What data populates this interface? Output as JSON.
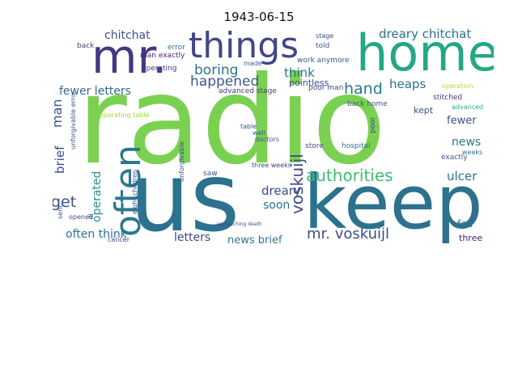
{
  "title": "1943-06-15",
  "words": {
    "radio": "radio",
    "keep": "keep",
    "us": "us",
    "mr": "mr.",
    "home": "home",
    "things": "things",
    "often": "often",
    "authorities": "authorities",
    "voskuijl": "voskuijl",
    "mr_voskuijl": "mr. voskuijl",
    "dreary_chitchat": "dreary chitchat",
    "chitchat": "chitchat",
    "hand": "hand",
    "boring": "boring",
    "happened": "happened",
    "fewer_letters": "fewer letters",
    "think": "think",
    "heaps": "heaps",
    "man": "man",
    "get": "get",
    "operated": "operated",
    "brief": "brief",
    "dreary": "dreary",
    "soon": "soon",
    "often_think": "often think",
    "letters": "letters",
    "news_brief": "news brief",
    "news": "news",
    "fewer": "fewer",
    "ulcer": "ulcer",
    "fed": "fed",
    "three": "three",
    "kept": "kept",
    "pointless": "pointless",
    "advanced_stage": "advanced stage",
    "man_exactly": "man exactly",
    "operating": "operating",
    "back": "back",
    "error": "error",
    "made": "made",
    "work_anymore": "work anymore",
    "poor_man": "poor man",
    "back_home": "back home",
    "stitched": "stitched",
    "operation": "operation",
    "advanced": "advanced",
    "exactly": "exactly",
    "weeks": "weeks",
    "store": "store",
    "hospital": "hospital",
    "table": "table",
    "well": "well",
    "doctors": "doctors",
    "three_weeks": "three weeks",
    "saw": "saw",
    "cancer": "cancer",
    "opened": "opened",
    "told": "told",
    "stage": "stage",
    "operating_table": "operating table",
    "unforgivable_error": "unforgivable error",
    "unforgivable": "unforgivable",
    "eight_children": "eight children",
    "poor": "poor",
    "approaching_death": "approaching death",
    "sent": "sent",
    "ill": "ill"
  }
}
